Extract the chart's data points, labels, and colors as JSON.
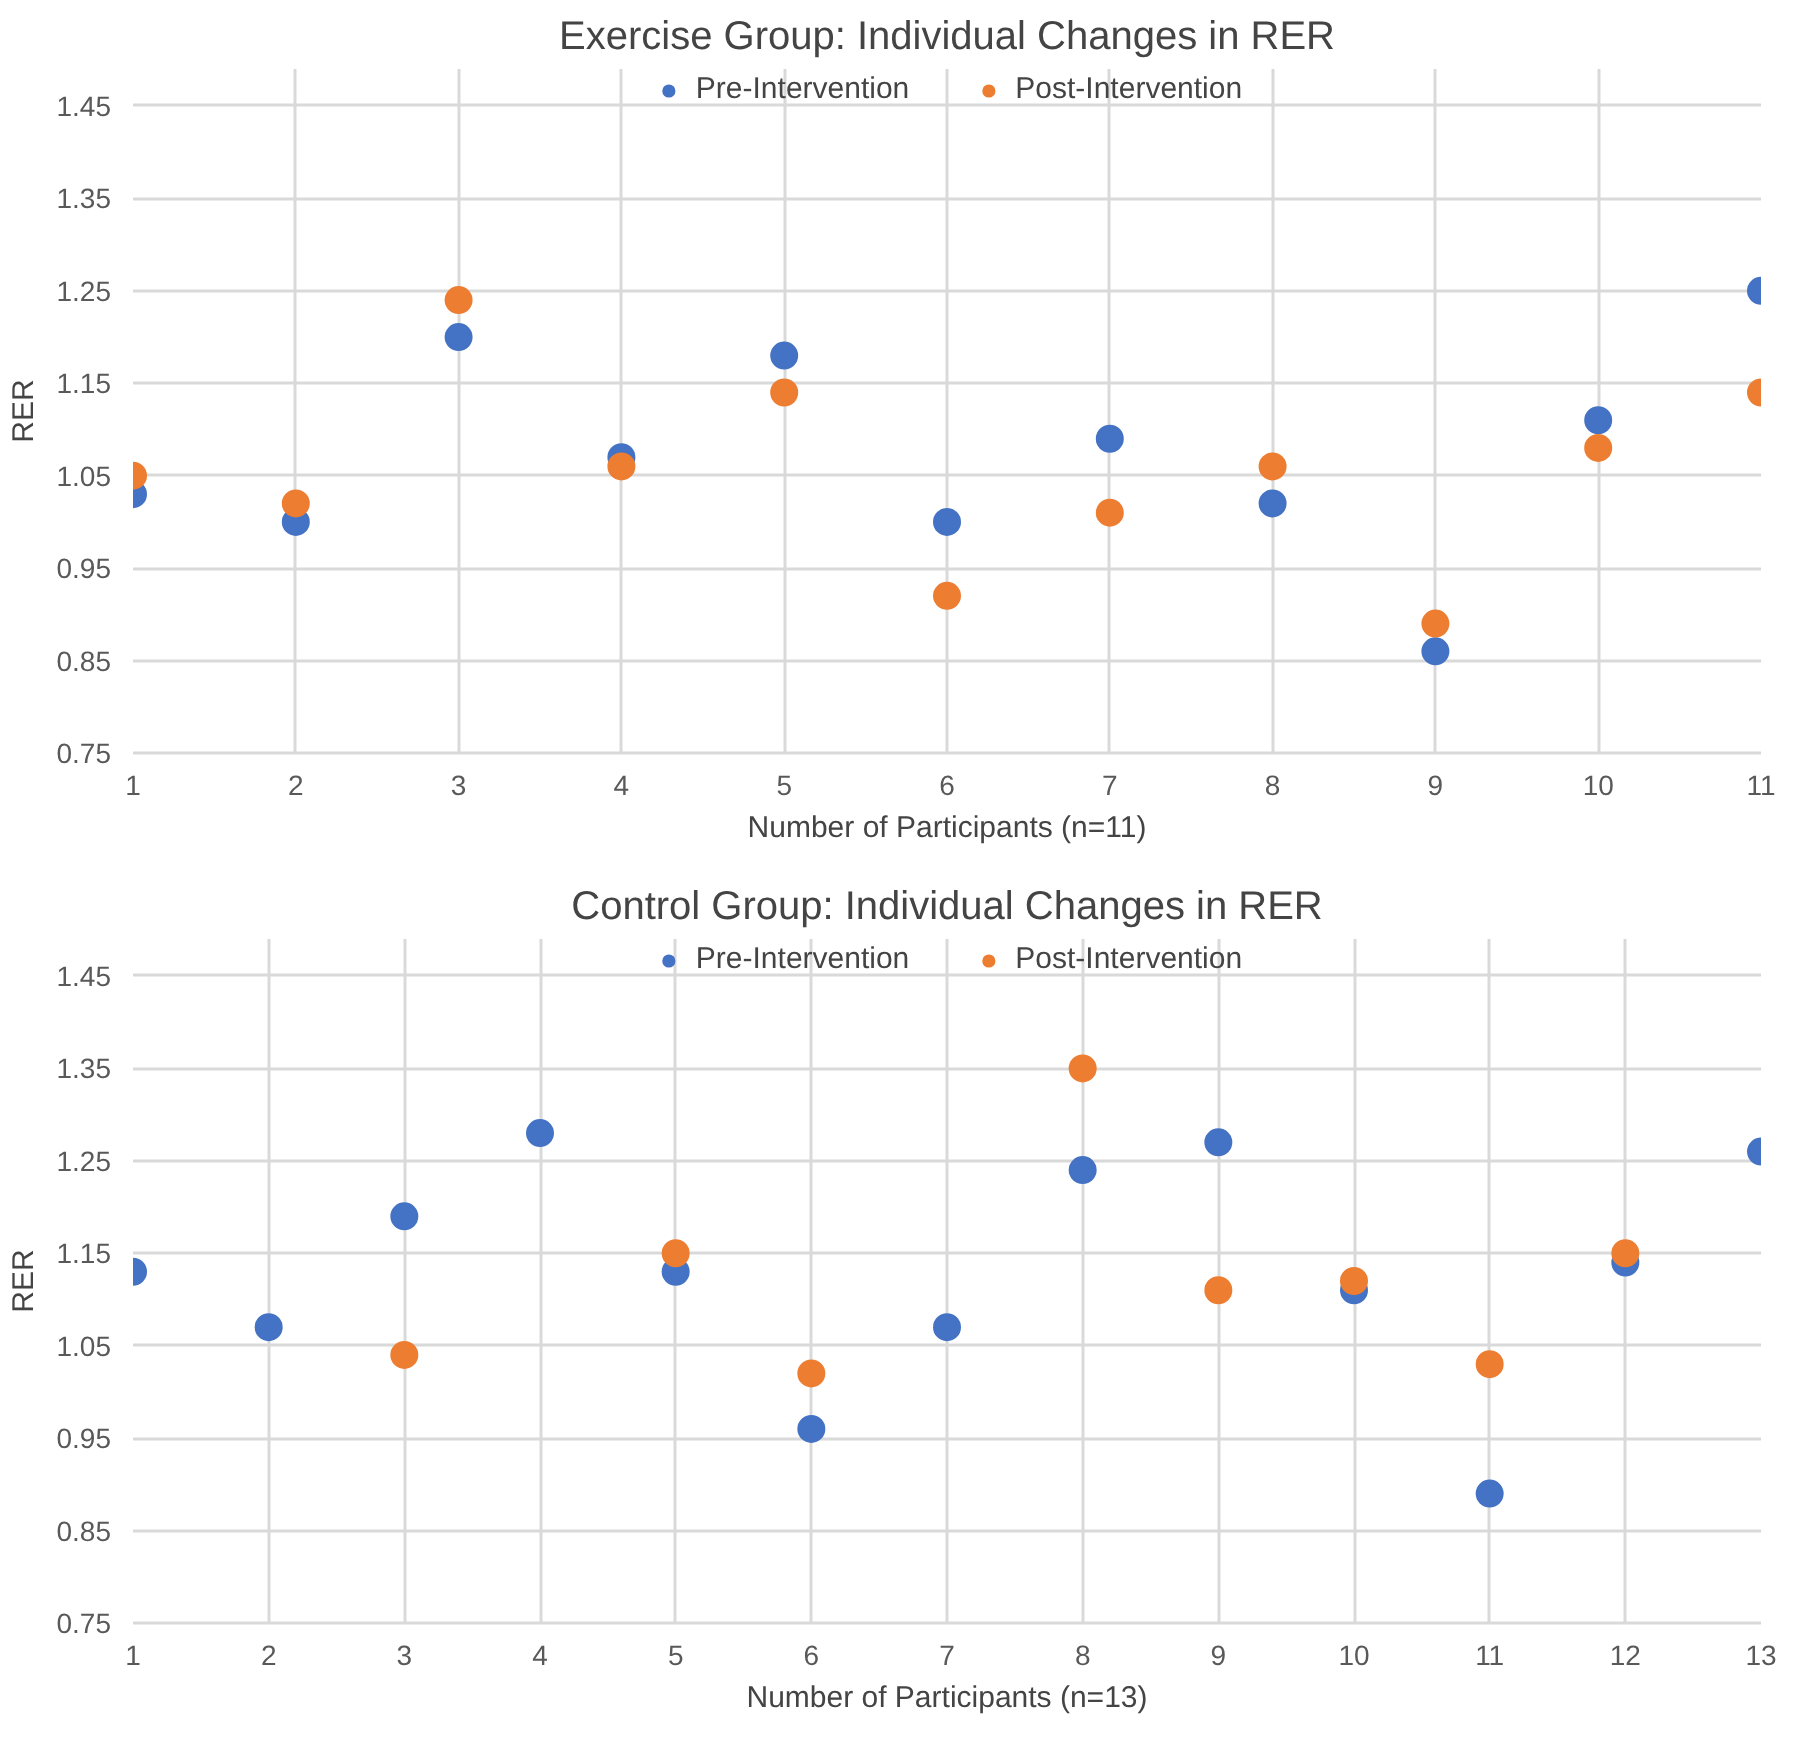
{
  "chart_data": [
    {
      "type": "scatter",
      "title": "Exercise Group: Individual Changes in RER",
      "xlabel": "Number of Participants (n=11)",
      "ylabel": "RER",
      "x": [
        1,
        2,
        3,
        4,
        5,
        6,
        7,
        8,
        9,
        10,
        11
      ],
      "series": [
        {
          "name": "Pre-Intervention",
          "color": "#4472c4",
          "values": [
            1.03,
            1.0,
            1.2,
            1.07,
            1.18,
            1.0,
            1.09,
            1.02,
            0.86,
            1.11,
            1.25
          ]
        },
        {
          "name": "Post-Intervention",
          "color": "#ed7d31",
          "values": [
            1.05,
            1.02,
            1.24,
            1.06,
            1.14,
            0.92,
            1.01,
            1.06,
            0.89,
            1.08,
            1.14
          ]
        }
      ],
      "xlim": [
        1,
        11
      ],
      "xticks": [
        1,
        2,
        3,
        4,
        5,
        6,
        7,
        8,
        9,
        10,
        11
      ],
      "ylim": [
        0.75,
        1.49
      ],
      "yticks": [
        0.75,
        0.85,
        0.95,
        1.05,
        1.15,
        1.25,
        1.35,
        1.45
      ],
      "grid": true,
      "legend": "top",
      "marker": "circle"
    },
    {
      "type": "scatter",
      "title": "Control Group: Individual Changes in RER",
      "xlabel": "Number of Participants (n=13)",
      "ylabel": "RER",
      "x": [
        1,
        2,
        3,
        4,
        5,
        6,
        7,
        8,
        9,
        10,
        11,
        12,
        13
      ],
      "series": [
        {
          "name": "Pre-Intervention",
          "color": "#4472c4",
          "values": [
            1.13,
            1.07,
            1.19,
            1.28,
            1.13,
            0.96,
            1.07,
            1.24,
            1.27,
            1.11,
            0.89,
            1.14,
            1.26
          ]
        },
        {
          "name": "Post-Intervention",
          "color": "#ed7d31",
          "values": [
            null,
            null,
            1.04,
            null,
            1.15,
            1.02,
            null,
            1.35,
            1.11,
            1.12,
            1.03,
            1.15,
            null
          ]
        }
      ],
      "xlim": [
        1,
        13
      ],
      "xticks": [
        1,
        2,
        3,
        4,
        5,
        6,
        7,
        8,
        9,
        10,
        11,
        12,
        13
      ],
      "ylim": [
        0.75,
        1.49
      ],
      "yticks": [
        0.75,
        0.85,
        0.95,
        1.05,
        1.15,
        1.25,
        1.35,
        1.45
      ],
      "grid": true,
      "legend": "top",
      "marker": "circle"
    }
  ]
}
